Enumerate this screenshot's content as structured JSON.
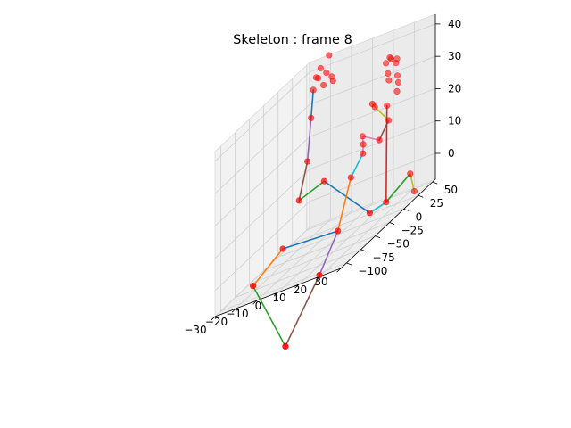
{
  "chart_data": {
    "type": "scatter3d",
    "title": "Skeleton : frame 8",
    "xlabel": "",
    "ylabel": "",
    "zlabel": "",
    "xlim": [
      -30,
      30
    ],
    "ylim": [
      -110,
      55
    ],
    "zlim": [
      -8,
      43
    ],
    "x_ticks": [
      "−30",
      "−20",
      "−10",
      "0",
      "10",
      "20",
      "30"
    ],
    "y_ticks": [
      "−100",
      "−75",
      "−50",
      "−25",
      "0",
      "25",
      "50"
    ],
    "z_ticks": [
      "0",
      "10",
      "20",
      "30",
      "40"
    ],
    "grid": true,
    "marker_color": "#ff0000",
    "joints": [
      {
        "name": "j0",
        "x": -20,
        "y": 0,
        "z": 7
      },
      {
        "name": "j1",
        "x": -8,
        "y": 0,
        "z": 10
      },
      {
        "name": "j2",
        "x": 2,
        "y": 10,
        "z": 7
      },
      {
        "name": "j3",
        "x": -25,
        "y": -10,
        "z": -5
      },
      {
        "name": "j4",
        "x": -31,
        "y": -40,
        "z": -10
      },
      {
        "name": "j5",
        "x": 4,
        "y": -20,
        "z": -5
      },
      {
        "name": "j6",
        "x": 2,
        "y": -45,
        "z": -14
      },
      {
        "name": "j7",
        "x": -6,
        "y": -75,
        "z": -29
      },
      {
        "name": "j8",
        "x": 17,
        "y": -12,
        "z": -4
      },
      {
        "name": "j9",
        "x": 21,
        "y": 2,
        "z": -4
      },
      {
        "name": "j10",
        "x": 27,
        "y": 22,
        "z": 0
      },
      {
        "name": "j11",
        "x": 29,
        "y": 22,
        "z": -6
      },
      {
        "name": "j12",
        "x": -19,
        "y": 11,
        "z": 17
      },
      {
        "name": "j13",
        "x": -20,
        "y": 21,
        "z": 29
      },
      {
        "name": "j14",
        "x": -20,
        "y": 25,
        "z": 37
      },
      {
        "name": "j15",
        "x": -18,
        "y": 26,
        "z": 40
      },
      {
        "name": "j16",
        "x": -20,
        "y": 30,
        "z": 40
      },
      {
        "name": "j17",
        "x": -16,
        "y": 33,
        "z": 40
      },
      {
        "name": "j18",
        "x": -16,
        "y": 28,
        "z": 37
      },
      {
        "name": "j19",
        "x": -14,
        "y": 35,
        "z": 38
      },
      {
        "name": "j20",
        "x": -12,
        "y": 30,
        "z": 37
      },
      {
        "name": "j21",
        "x": -19,
        "y": 34,
        "z": 42
      },
      {
        "name": "j22",
        "x": -15,
        "y": 34,
        "z": 45
      },
      {
        "name": "j23",
        "x": 5,
        "y": 20,
        "z": 12
      },
      {
        "name": "j24",
        "x": 3,
        "y": 28,
        "z": 14
      },
      {
        "name": "j25",
        "x": 1,
        "y": 34,
        "z": 16
      },
      {
        "name": "j26",
        "x": 11,
        "y": 40,
        "z": 22
      },
      {
        "name": "j27",
        "x": 14,
        "y": 32,
        "z": 18
      },
      {
        "name": "j28",
        "x": 8,
        "y": 30,
        "z": 24
      },
      {
        "name": "j29",
        "x": 15,
        "y": 12,
        "z": 15
      },
      {
        "name": "j30",
        "x": 9,
        "y": 22,
        "z": 26
      },
      {
        "name": "j31",
        "x": 13,
        "y": 36,
        "z": 30
      },
      {
        "name": "j32",
        "x": 11,
        "y": 45,
        "z": 36
      },
      {
        "name": "j33",
        "x": 13,
        "y": 40,
        "z": 36
      },
      {
        "name": "j34",
        "x": 15,
        "y": 43,
        "z": 35
      },
      {
        "name": "j35",
        "x": 12,
        "y": 38,
        "z": 32
      },
      {
        "name": "j36",
        "x": 16,
        "y": 40,
        "z": 30
      },
      {
        "name": "j37",
        "x": 17,
        "y": 38,
        "z": 28
      },
      {
        "name": "j38",
        "x": 18,
        "y": 32,
        "z": 26
      },
      {
        "name": "j39",
        "x": 15,
        "y": 41,
        "z": 34
      },
      {
        "name": "j40",
        "x": 10,
        "y": 42,
        "z": 35
      }
    ],
    "bones": [
      {
        "from": "j1",
        "to": "j8",
        "color": "#1f77b4"
      },
      {
        "from": "j1",
        "to": "j0",
        "color": "#2ca02c"
      },
      {
        "from": "j3",
        "to": "j5",
        "color": "#1f77b4"
      },
      {
        "from": "j0",
        "to": "j12",
        "color": "#8c564b"
      },
      {
        "from": "j12",
        "to": "j13",
        "color": "#9467bd"
      },
      {
        "from": "j13",
        "to": "j14",
        "color": "#1f77b4"
      },
      {
        "from": "j3",
        "to": "j4",
        "color": "#ff7f0e"
      },
      {
        "from": "j4",
        "to": "j7",
        "color": "#2ca02c"
      },
      {
        "from": "j5",
        "to": "j2",
        "color": "#ff7f0e"
      },
      {
        "from": "j5",
        "to": "j6",
        "color": "#9467bd"
      },
      {
        "from": "j6",
        "to": "j7",
        "color": "#8c564b"
      },
      {
        "from": "j8",
        "to": "j9",
        "color": "#17becf"
      },
      {
        "from": "j9",
        "to": "j10",
        "color": "#2ca02c"
      },
      {
        "from": "j10",
        "to": "j11",
        "color": "#bcbd22"
      },
      {
        "from": "j2",
        "to": "j23",
        "color": "#17becf"
      },
      {
        "from": "j23",
        "to": "j24",
        "color": "#e377c2"
      },
      {
        "from": "j24",
        "to": "j25",
        "color": "#e377c2"
      },
      {
        "from": "j25",
        "to": "j29",
        "color": "#e377c2"
      },
      {
        "from": "j29",
        "to": "j27",
        "color": "#8c564b"
      },
      {
        "from": "j27",
        "to": "j28",
        "color": "#bcbd22"
      },
      {
        "from": "j28",
        "to": "j30",
        "color": "#bcbd22"
      },
      {
        "from": "j26",
        "to": "j9",
        "color": "#d62728"
      }
    ]
  }
}
